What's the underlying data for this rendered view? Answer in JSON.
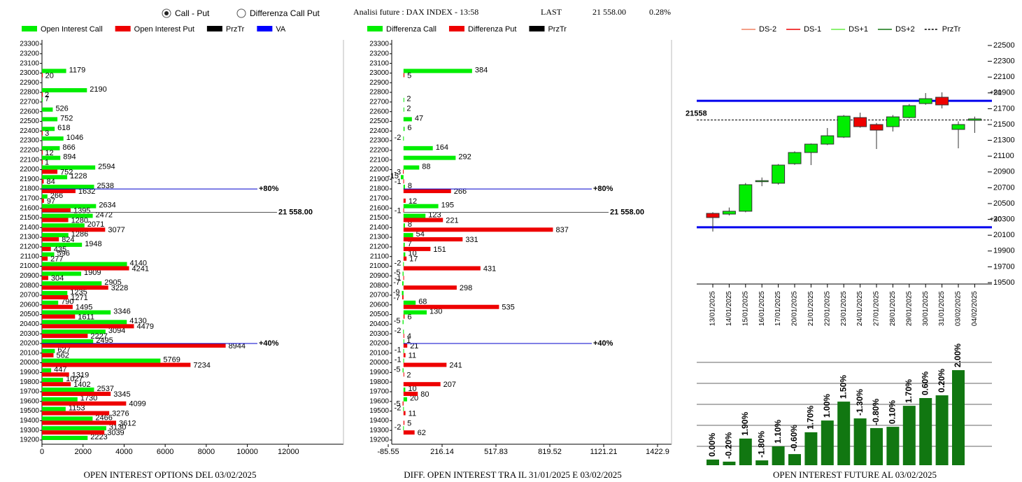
{
  "header": {
    "radios": [
      {
        "label": "Call - Put",
        "selected": true
      },
      {
        "label": "Differenza Call Put",
        "selected": false
      }
    ],
    "title": "Analisi future : DAX INDEX - 13:58",
    "last_label": "LAST",
    "last_value": "21 558.00",
    "change": "0.28%"
  },
  "chart_data": [
    {
      "type": "hbar",
      "title": "OPEN INTEREST OPTIONS DEL 03/02/2025",
      "categories": [
        23300,
        23200,
        23100,
        23000,
        22900,
        22800,
        22700,
        22600,
        22500,
        22400,
        22300,
        22200,
        22100,
        22000,
        21900,
        21800,
        21700,
        21600,
        21500,
        21400,
        21300,
        21200,
        21100,
        21000,
        20900,
        20800,
        20700,
        20600,
        20500,
        20400,
        20300,
        20200,
        20100,
        20000,
        19900,
        19800,
        19700,
        19600,
        19500,
        19400,
        19300,
        19200
      ],
      "series": [
        {
          "name": "Open Interest Call",
          "color": "#00ee00",
          "values": [
            null,
            null,
            null,
            1179,
            null,
            2190,
            7,
            526,
            752,
            618,
            1046,
            866,
            894,
            2594,
            1228,
            2538,
            266,
            2634,
            2472,
            2071,
            1286,
            1948,
            596,
            4140,
            1909,
            2905,
            1235,
            790,
            3346,
            4130,
            3094,
            2495,
            627,
            5769,
            447,
            1027,
            2537,
            1730,
            1153,
            2466,
            3130,
            2223
          ]
        },
        {
          "name": "Open Interest Put",
          "color": "#ee0000",
          "values": [
            null,
            null,
            null,
            20,
            null,
            2,
            null,
            null,
            null,
            3,
            null,
            12,
            1,
            752,
            84,
            1632,
            97,
            1395,
            1280,
            3077,
            824,
            435,
            277,
            4241,
            304,
            3228,
            1271,
            1495,
            1611,
            4479,
            2227,
            8944,
            562,
            7234,
            1319,
            1402,
            3345,
            4099,
            3276,
            3612,
            3039,
            null
          ]
        }
      ],
      "legend": [
        {
          "name": "PrzTr",
          "color": "#000000"
        },
        {
          "name": "VA",
          "color": "#0000ff"
        }
      ],
      "lines": [
        {
          "value": 21800,
          "label": "+80%",
          "color": "#0000cc"
        },
        {
          "value": 21558,
          "label": "21 558.00",
          "color": "#555555"
        },
        {
          "value": 20200,
          "label": "+40%",
          "color": "#0000cc"
        }
      ],
      "xlim": [
        0,
        14000
      ],
      "xticks": [
        0,
        2000,
        4000,
        6000,
        8000,
        10000,
        12000
      ]
    },
    {
      "type": "hbar",
      "title": "DIFF. OPEN INTEREST TRA IL 31/01/2025 E 03/02/2025",
      "categories": [
        23300,
        23200,
        23100,
        23000,
        22900,
        22800,
        22700,
        22600,
        22500,
        22400,
        22300,
        22200,
        22100,
        22000,
        21900,
        21800,
        21700,
        21600,
        21500,
        21400,
        21300,
        21200,
        21100,
        21000,
        20900,
        20800,
        20700,
        20600,
        20500,
        20400,
        20300,
        20200,
        20100,
        20000,
        19900,
        19800,
        19700,
        19600,
        19500,
        19400,
        19300,
        19200
      ],
      "series": [
        {
          "name": "Differenza Call",
          "color": "#00ee00",
          "values": [
            null,
            null,
            null,
            384,
            null,
            null,
            2,
            2,
            47,
            6,
            -2,
            164,
            292,
            88,
            -15,
            8,
            null,
            195,
            123,
            8,
            54,
            7,
            10,
            -2,
            -5,
            -7,
            -9,
            68,
            130,
            -5,
            -2,
            1,
            -1,
            -1,
            -5,
            null,
            10,
            20,
            -2,
            null,
            -2,
            null
          ]
        },
        {
          "name": "Differenza Put",
          "color": "#ee0000",
          "values": [
            null,
            null,
            null,
            5,
            null,
            null,
            null,
            null,
            null,
            null,
            null,
            null,
            null,
            -3,
            -1,
            266,
            12,
            -1,
            221,
            837,
            331,
            151,
            17,
            431,
            -1,
            298,
            -7,
            535,
            6,
            null,
            4,
            21,
            11,
            241,
            2,
            207,
            80,
            -5,
            11,
            5,
            62,
            null
          ]
        }
      ],
      "legend": [
        {
          "name": "PrzTr",
          "color": "#000000"
        }
      ],
      "lines": [
        {
          "value": 21800,
          "label": "+80%",
          "color": "#0000cc"
        },
        {
          "value": 21558,
          "label": "21 558.00",
          "color": "#555555"
        },
        {
          "value": 20200,
          "label": "+40%",
          "color": "#0000cc"
        }
      ],
      "xlim": [
        -85.55,
        1422.9
      ],
      "xticks": [
        -85.55,
        216.14,
        517.83,
        819.52,
        1121.21,
        1422.9
      ]
    },
    {
      "type": "candlestick",
      "x": [
        "13/01/2025",
        "14/01/2025",
        "15/01/2025",
        "16/01/2025",
        "17/01/2025",
        "20/01/2025",
        "21/01/2025",
        "22/01/2025",
        "23/01/2025",
        "24/01/2025",
        "27/01/2025",
        "28/01/2025",
        "29/01/2025",
        "30/01/2025",
        "31/01/2025",
        "03/02/2025",
        "04/02/2025"
      ],
      "open": [
        20376,
        20367,
        20403,
        20780,
        20757,
        21004,
        21146,
        21252,
        21341,
        21588,
        21500,
        21473,
        21588,
        21765,
        21845,
        21438,
        21553
      ],
      "high": [
        20390,
        20450,
        20760,
        20830,
        21000,
        21160,
        21260,
        21456,
        21620,
        21650,
        21520,
        21620,
        21760,
        21898,
        21907,
        21540,
        21600
      ],
      "low": [
        20146,
        20350,
        20390,
        20720,
        20740,
        20990,
        20987,
        21240,
        21330,
        21460,
        21190,
        21412,
        21580,
        21750,
        21704,
        21199,
        21394
      ],
      "close": [
        20323,
        20403,
        20739,
        20790,
        20987,
        21146,
        21252,
        21358,
        21606,
        21473,
        21429,
        21597,
        21739,
        21827,
        21748,
        21500,
        21571
      ],
      "up_color": "#00ee00",
      "down_color": "#ee0000",
      "legend": [
        {
          "name": "DS-2",
          "color": "#f08060",
          "dash": false
        },
        {
          "name": "DS-1",
          "color": "#ee0000",
          "dash": false
        },
        {
          "name": "DS+1",
          "color": "#66ee44",
          "dash": false
        },
        {
          "name": "DS+2",
          "color": "#117711",
          "dash": false
        },
        {
          "name": "PrzTr",
          "color": "#000000",
          "dash": true
        }
      ],
      "lines": [
        {
          "value": 21800,
          "label": "+80",
          "color": "#0000ee",
          "dash": false
        },
        {
          "value": 21558,
          "label": "21558",
          "color": "#000000",
          "dash": true
        },
        {
          "value": 20200,
          "label": "+40",
          "color": "#0000ee",
          "dash": false
        }
      ],
      "ylim": [
        19500,
        22500
      ],
      "yticks": [
        19500,
        19700,
        19900,
        20100,
        20300,
        20500,
        20700,
        20900,
        21100,
        21300,
        21500,
        21700,
        21900,
        22100,
        22300,
        22500
      ]
    },
    {
      "type": "bar",
      "title": "OPEN INTEREST FUTURE AL 03/02/2025",
      "color": "#117711",
      "values": [
        0.27,
        0.17,
        1.27,
        0.23,
        0.9,
        0.53,
        1.57,
        2.13,
        3.03,
        2.23,
        1.77,
        1.83,
        2.83,
        3.2,
        3.33,
        4.53
      ],
      "labels": [
        "0.00%",
        "-0.20%",
        "1.90%",
        "-1.80%",
        "1.10%",
        "-0.60%",
        "1.70%",
        "1.00%",
        "1.50%",
        "-1.30%",
        "-0.80%",
        "0.10%",
        "1.70%",
        "0.60%",
        "0.20%",
        "2.00%"
      ],
      "ylim": [
        0,
        4.9
      ],
      "yticks": [
        0.9,
        1.9,
        2.9,
        3.9,
        4.9
      ],
      "grid": true
    }
  ]
}
